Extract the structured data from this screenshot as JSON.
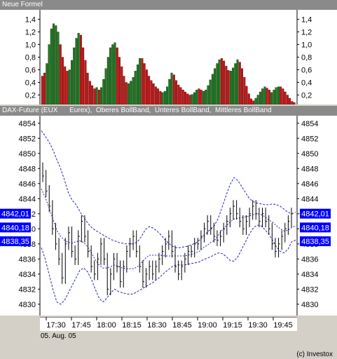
{
  "top_panel": {
    "title": "Neue Formel"
  },
  "main_panel": {
    "title": "DAX-Future (EUX      Eurex),  Oberes BollBand,  Unteres BollBand,  Mittleres BollBand"
  },
  "date_label": "05. Aug. 05",
  "copyright": "(c) Investox",
  "colors": {
    "up_bar": "#1a7a1a",
    "down_bar": "#d01010",
    "band": "#2020c0",
    "price_box": "#0000ff",
    "price": "#000000"
  },
  "chart_data": [
    {
      "type": "bar",
      "title": "Neue Formel",
      "ylim": [
        0.05,
        1.55
      ],
      "yticks": [
        "0,2",
        "0,4",
        "0,6",
        "0,8",
        "1,0",
        "1,2",
        "1,4"
      ],
      "values": [
        0.5,
        0.55,
        0.7,
        1.0,
        1.25,
        1.33,
        1.3,
        1.2,
        1.0,
        0.8,
        0.65,
        0.58,
        0.6,
        0.75,
        0.95,
        1.1,
        1.18,
        1.15,
        0.95,
        0.75,
        0.55,
        0.42,
        0.35,
        0.3,
        0.32,
        0.28,
        0.32,
        0.45,
        0.62,
        0.8,
        0.95,
        1.0,
        1.03,
        0.95,
        0.8,
        0.65,
        0.5,
        0.4,
        0.38,
        0.42,
        0.48,
        0.58,
        0.68,
        0.78,
        0.78,
        0.7,
        0.6,
        0.5,
        0.43,
        0.38,
        0.33,
        0.3,
        0.26,
        0.24,
        0.26,
        0.33,
        0.45,
        0.55,
        0.52,
        0.43,
        0.36,
        0.32,
        0.28,
        0.25,
        0.22,
        0.2,
        0.21,
        0.24,
        0.28,
        0.3,
        0.28,
        0.26,
        0.28,
        0.35,
        0.44,
        0.53,
        0.62,
        0.7,
        0.76,
        0.78,
        0.74,
        0.66,
        0.59,
        0.58,
        0.63,
        0.7,
        0.76,
        0.72,
        0.62,
        0.48,
        0.34,
        0.22,
        0.14,
        0.11,
        0.15,
        0.2,
        0.25,
        0.3,
        0.33,
        0.31,
        0.28,
        0.24,
        0.28,
        0.32,
        0.33,
        0.33,
        0.3,
        0.25,
        0.2,
        0.15,
        0.1,
        0.08
      ],
      "bar_colors": [
        "r",
        "r",
        "g",
        "g",
        "g",
        "g",
        "g",
        "g",
        "r",
        "r",
        "r",
        "r",
        "g",
        "g",
        "g",
        "g",
        "g",
        "r",
        "r",
        "r",
        "r",
        "r",
        "r",
        "r",
        "g",
        "r",
        "g",
        "g",
        "g",
        "g",
        "g",
        "g",
        "g",
        "r",
        "r",
        "r",
        "r",
        "r",
        "g",
        "g",
        "g",
        "g",
        "g",
        "g",
        "r",
        "r",
        "r",
        "r",
        "r",
        "r",
        "r",
        "r",
        "r",
        "g",
        "g",
        "g",
        "g",
        "g",
        "r",
        "r",
        "r",
        "r",
        "r",
        "r",
        "r",
        "r",
        "g",
        "g",
        "g",
        "r",
        "r",
        "g",
        "g",
        "g",
        "g",
        "g",
        "g",
        "g",
        "g",
        "r",
        "r",
        "r",
        "r",
        "g",
        "g",
        "g",
        "g",
        "r",
        "r",
        "r",
        "r",
        "r",
        "r",
        "r",
        "g",
        "g",
        "g",
        "g",
        "g",
        "r",
        "r",
        "g",
        "g",
        "g",
        "g",
        "r",
        "r",
        "r",
        "r",
        "r",
        "r"
      ]
    },
    {
      "type": "line",
      "title": "DAX-Future (EUX      Eurex),  Oberes BollBand,  Unteres BollBand,  Mittleres BollBand",
      "x_ticks": [
        "17:30",
        "17:45",
        "18:00",
        "18:15",
        "18:30",
        "18:45",
        "19:00",
        "19:15",
        "19:30",
        "19:45"
      ],
      "x_date": "05. Aug. 05",
      "ylim": [
        4828.5,
        4855
      ],
      "yticks": [
        "4830",
        "4832",
        "4834",
        "4836",
        "4838",
        "4840",
        "4842",
        "4844",
        "4846",
        "4848",
        "4850",
        "4852",
        "4854"
      ],
      "price_labels": [
        {
          "text": "4842,01",
          "value": 4842.01
        },
        {
          "text": "4840,18",
          "value": 4840.18
        },
        {
          "text": "4838,35",
          "value": 4838.35
        }
      ],
      "series": [
        {
          "name": "Oberes BollBand",
          "values": [
            4853,
            4852.3,
            4851.5,
            4850.5,
            4849.2,
            4848,
            4846.5,
            4844.8,
            4843.8,
            4843.2,
            4842.3,
            4841.5,
            4840.8,
            4840.2,
            4839.8,
            4839.5,
            4839.2,
            4838.9,
            4838.6,
            4838.4,
            4838.2,
            4838.1,
            4838,
            4838,
            4838,
            4838.3,
            4839,
            4839.9,
            4840.3,
            4840.1,
            4839.7,
            4839.2,
            4838.6,
            4838.1,
            4837.7,
            4837.5,
            4837.5,
            4837.6,
            4837.7,
            4837.9,
            4838.1,
            4838.5,
            4839,
            4839.5,
            4840,
            4840.5,
            4841.5,
            4843,
            4844.5,
            4845.9,
            4846.8,
            4846.4,
            4845.6,
            4844.8,
            4844,
            4843.6,
            4843.4,
            4843.3,
            4843.2,
            4843.2,
            4843.3,
            4843.2,
            4843,
            4842.6,
            4842.2,
            4842,
            4842.2
          ]
        },
        {
          "name": "Unteres BollBand",
          "values": [
            4837.5,
            4836,
            4834,
            4832,
            4830.3,
            4830,
            4830.5,
            4831.5,
            4832.5,
            4833.5,
            4834.5,
            4834.8,
            4834.3,
            4833.3,
            4832,
            4830.8,
            4830.3,
            4830.8,
            4831.5,
            4832,
            4831.7,
            4831.5,
            4831.4,
            4831.3,
            4831.4,
            4831.7,
            4832,
            4832.3,
            4832.6,
            4832.9,
            4833.3,
            4833.7,
            4834.2,
            4834.6,
            4835,
            4835.2,
            4835.2,
            4835.2,
            4835.3,
            4835.4,
            4835.5,
            4835.6,
            4835.9,
            4836.1,
            4836.3,
            4836.6,
            4836.8,
            4836.7,
            4836.3,
            4835.8,
            4835.7,
            4836.3,
            4837.3,
            4838.3,
            4839.3,
            4840.1,
            4840.5,
            4840.4,
            4839.9,
            4839.3,
            4838.5,
            4837.6,
            4837,
            4836.8,
            4837.3,
            4838.3,
            4838.5
          ]
        },
        {
          "name": "Mittleres BollBand",
          "values": [
            4845.3,
            4844.2,
            4842.8,
            4841.3,
            4839.8,
            4839,
            4838.5,
            4838.2,
            4838.1,
            4838.3,
            4838.4,
            4838.2,
            4837.6,
            4836.8,
            4835.9,
            4835.2,
            4834.8,
            4834.8,
            4835,
            4835.2,
            4835,
            4834.8,
            4834.7,
            4834.7,
            4834.7,
            4835,
            4835.5,
            4836.1,
            4836.5,
            4836.5,
            4836.5,
            4836.5,
            4836.4,
            4836.4,
            4836.4,
            4836.4,
            4836.4,
            4836.4,
            4836.5,
            4836.6,
            4836.8,
            4837,
            4837.5,
            4837.8,
            4838.2,
            4838.5,
            4839.2,
            4839.9,
            4840.4,
            4840.9,
            4841.3,
            4841.4,
            4841.5,
            4841.6,
            4841.7,
            4841.9,
            4842,
            4841.9,
            4841.6,
            4841.2,
            4840.9,
            4840.4,
            4840,
            4839.7,
            4839.8,
            4840.2,
            4840.4
          ]
        },
        {
          "name": "DAX-Future",
          "values": [
            4847,
            4845,
            4843,
            4840,
            4838,
            4836,
            4833.5,
            4838,
            4839.5,
            4837,
            4836,
            4839,
            4841,
            4839,
            4837,
            4835,
            4834,
            4836,
            4838,
            4836,
            4832,
            4834,
            4836,
            4835,
            4833,
            4835,
            4837,
            4838,
            4839,
            4837,
            4835,
            4833,
            4834,
            4835,
            4834,
            4835,
            4836,
            4837,
            4838,
            4839,
            4837,
            4835,
            4834,
            4835,
            4836,
            4837,
            4837,
            4838,
            4838,
            4839,
            4840,
            4841,
            4840,
            4839,
            4838.5,
            4839,
            4840,
            4841,
            4842,
            4843,
            4842,
            4841,
            4840,
            4841,
            4842,
            4843,
            4842,
            4841,
            4842,
            4841,
            4840,
            4838,
            4837,
            4838,
            4839,
            4840,
            4841,
            4842
          ]
        }
      ]
    }
  ]
}
